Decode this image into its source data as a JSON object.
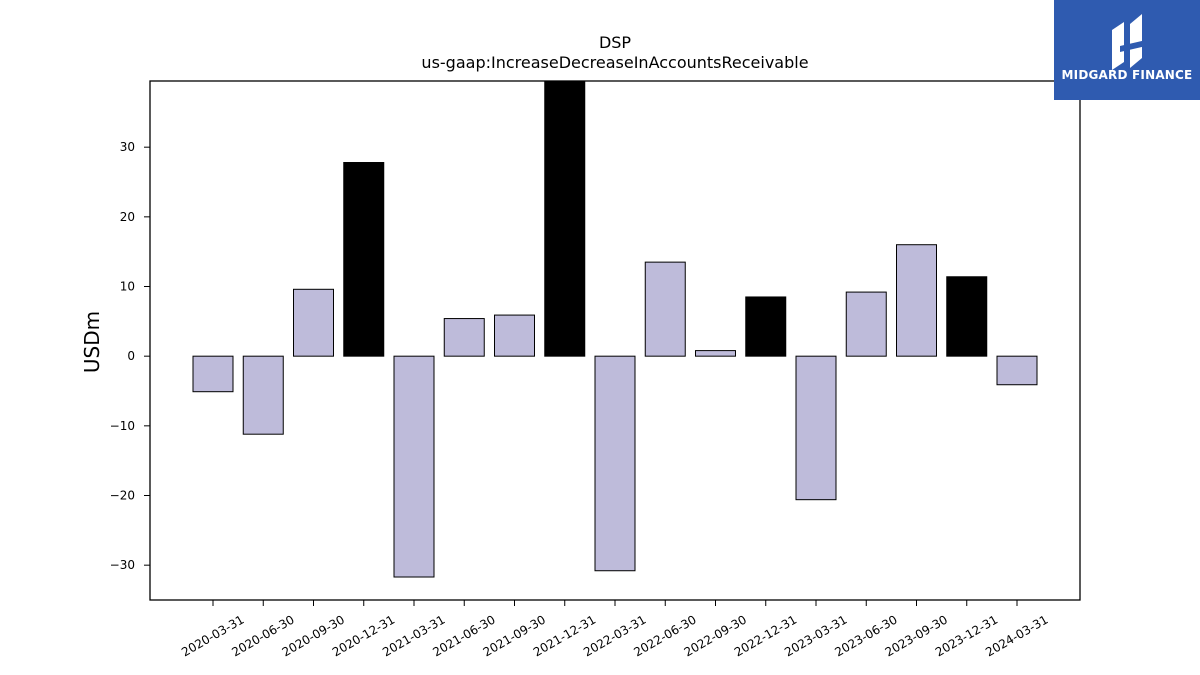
{
  "brand": {
    "name": "MIDGARD FINANCE",
    "bg_color": "#2f5bb0"
  },
  "chart_data": {
    "type": "bar",
    "title": "DSP",
    "subtitle": "us-gaap:IncreaseDecreaseInAccountsReceivable",
    "xlabel": "",
    "ylabel": "USDm",
    "ylim": [
      -35,
      39.5
    ],
    "yticks": [
      30,
      20,
      10,
      0,
      -10,
      -20,
      -30
    ],
    "ytick_labels": [
      "30",
      "20",
      "10",
      "0",
      "−10",
      "−20",
      "−30"
    ],
    "grid": false,
    "categories": [
      "2020-03-31",
      "2020-06-30",
      "2020-09-30",
      "2020-12-31",
      "2021-03-31",
      "2021-06-30",
      "2021-09-30",
      "2021-12-31",
      "2022-03-31",
      "2022-06-30",
      "2022-09-30",
      "2022-12-31",
      "2023-03-31",
      "2023-06-30",
      "2023-09-30",
      "2023-12-31",
      "2024-03-31"
    ],
    "values": [
      -5.1,
      -11.2,
      9.6,
      27.8,
      -31.7,
      5.4,
      5.9,
      39.5,
      -30.8,
      13.5,
      0.8,
      8.5,
      -20.6,
      9.2,
      16.0,
      11.4,
      -4.1
    ],
    "bar_colors": [
      "#bebbda",
      "#bebbda",
      "#bebbda",
      "#000000",
      "#bebbda",
      "#bebbda",
      "#bebbda",
      "#000000",
      "#bebbda",
      "#bebbda",
      "#bebbda",
      "#000000",
      "#bebbda",
      "#bebbda",
      "#bebbda",
      "#000000",
      "#bebbda"
    ]
  }
}
